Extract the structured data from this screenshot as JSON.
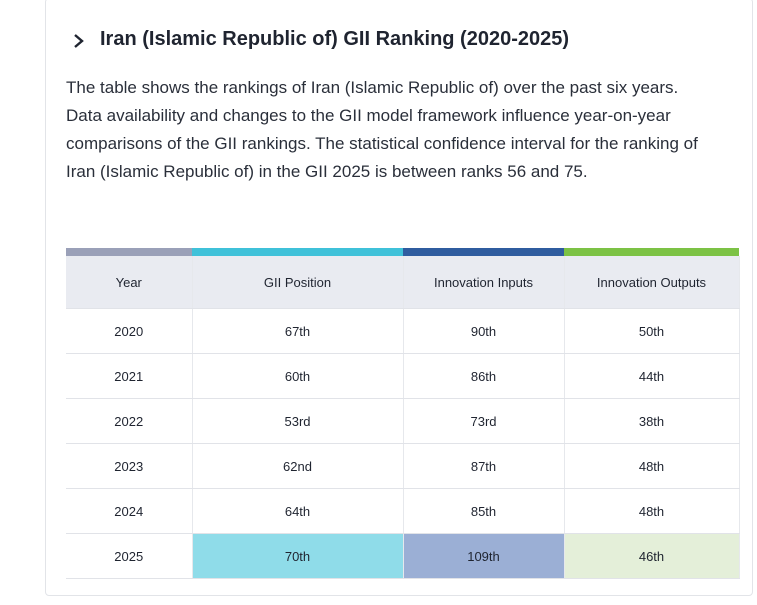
{
  "header": {
    "title": "Iran (Islamic Republic of) GII Ranking (2020-2025)"
  },
  "description": "The table shows the rankings of Iran (Islamic Republic of) over the past six years. Data availability and changes to the GII model framework influence year-on-year comparisons of the GII rankings. The statistical confidence interval for the ranking of Iran (Islamic Republic of) in the GII 2025 is between ranks 56 and 75.",
  "table": {
    "columns": [
      "Year",
      "GII Position",
      "Innovation Inputs",
      "Innovation Outputs"
    ],
    "rows": [
      [
        "2020",
        "67th",
        "90th",
        "50th"
      ],
      [
        "2021",
        "60th",
        "86th",
        "44th"
      ],
      [
        "2022",
        "53rd",
        "73rd",
        "38th"
      ],
      [
        "2023",
        "62nd",
        "87th",
        "48th"
      ],
      [
        "2024",
        "64th",
        "85th",
        "48th"
      ],
      [
        "2025",
        "70th",
        "109th",
        "46th"
      ]
    ]
  }
}
